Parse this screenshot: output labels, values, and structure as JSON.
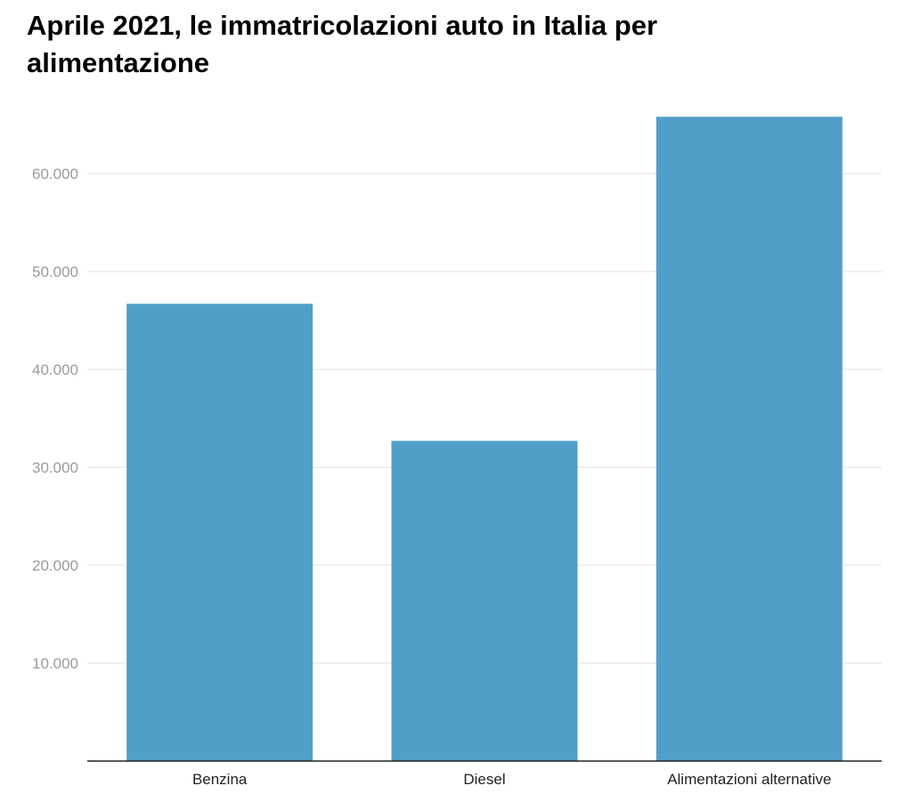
{
  "chart_data": {
    "type": "bar",
    "title": "Aprile 2021, le immatricolazioni auto in Italia per alimentazione",
    "categories": [
      "Benzina",
      "Diesel",
      "Alimentazioni alternative"
    ],
    "values": [
      46700,
      32700,
      65800
    ],
    "yticks": [
      10000,
      20000,
      30000,
      40000,
      50000,
      60000
    ],
    "ytick_labels": [
      "10.000",
      "20.000",
      "30.000",
      "40.000",
      "50.000",
      "60.000"
    ],
    "ylim": [
      0,
      70000
    ],
    "xlabel": "",
    "ylabel": "",
    "grid": true,
    "legend": "none",
    "bar_color": "#509fc8"
  }
}
